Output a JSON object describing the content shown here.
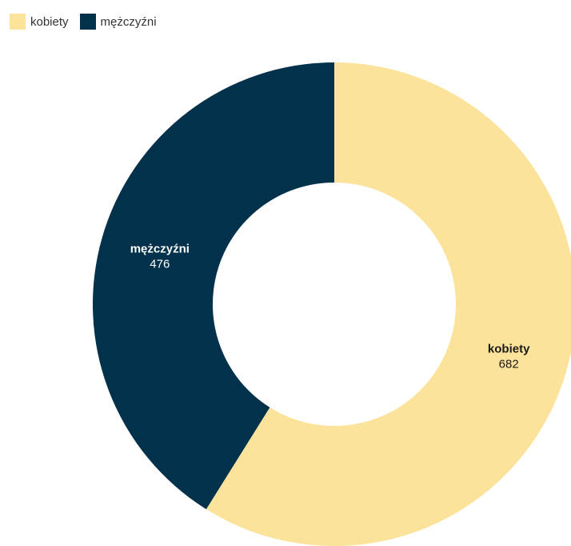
{
  "chart_data": {
    "type": "pie",
    "donut": true,
    "categories": [
      "kobiety",
      "mężczyźni"
    ],
    "values": [
      682,
      476
    ],
    "colors": [
      "#fce39b",
      "#02314b"
    ],
    "label_colors": [
      "#1a1a1a",
      "#ffffff"
    ],
    "legend": {
      "position": "top-left",
      "items": [
        "kobiety",
        "mężczyźni"
      ]
    }
  }
}
